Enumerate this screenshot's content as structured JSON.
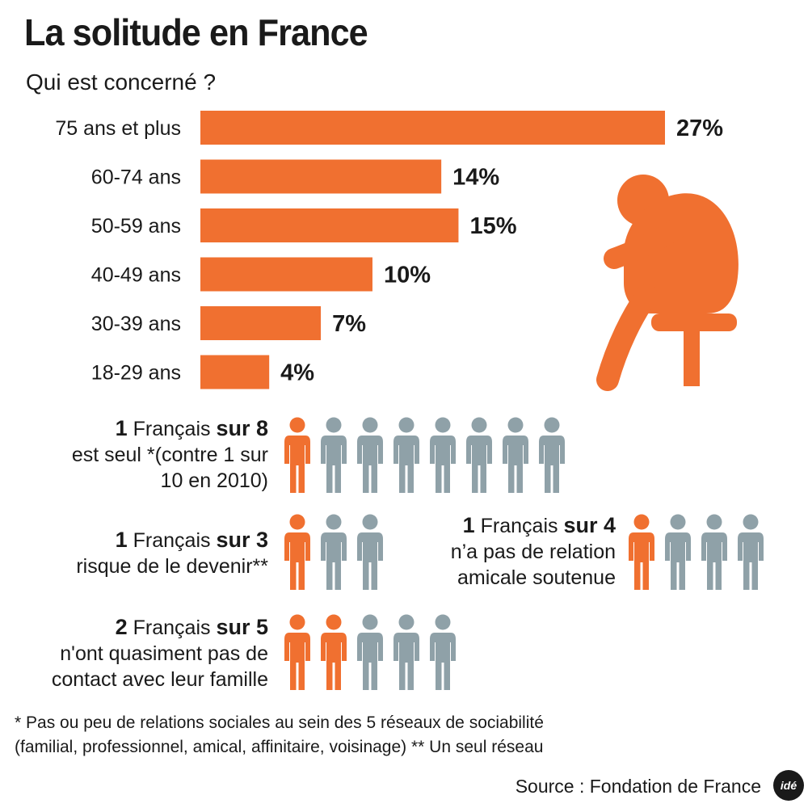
{
  "header": {
    "title": "La solitude en France",
    "subtitle": "Qui est concerné ?"
  },
  "chart_data": {
    "type": "bar",
    "orientation": "horizontal",
    "categories": [
      "75 ans et plus",
      "60-74 ans",
      "50-59 ans",
      "40-49 ans",
      "30-39 ans",
      "18-29 ans"
    ],
    "values": [
      27,
      14,
      15,
      10,
      7,
      4
    ],
    "value_labels": [
      "27%",
      "14%",
      "15%",
      "10%",
      "7%",
      "4%"
    ],
    "title": "La solitude en France",
    "subtitle": "Qui est concerné ?",
    "xlabel": "",
    "ylabel": "",
    "xlim": [
      0,
      30
    ],
    "grid": false,
    "bar_color": "#f07030"
  },
  "colors": {
    "accent": "#f07030",
    "muted": "#8fa1a8",
    "text": "#1a1a1a"
  },
  "stats": [
    {
      "id": "stat-1-sur-8",
      "num": "1",
      "mid": " Français ",
      "sur": "sur 8",
      "lines": [
        "est seul *(contre 1 sur",
        "10 en 2010)"
      ],
      "highlighted": 1,
      "total": 8
    },
    {
      "id": "stat-1-sur-3",
      "num": "1",
      "mid": " Français ",
      "sur": "sur 3",
      "lines": [
        "risque de le devenir**"
      ],
      "highlighted": 1,
      "total": 3
    },
    {
      "id": "stat-1-sur-4",
      "num": "1",
      "mid": " Français ",
      "sur": "sur 4",
      "lines": [
        "n’a pas de relation",
        "amicale soutenue"
      ],
      "highlighted": 1,
      "total": 4
    },
    {
      "id": "stat-2-sur-5",
      "num": "2",
      "mid": " Français ",
      "sur": "sur 5",
      "lines": [
        "n'ont quasiment pas de",
        "contact avec leur famille"
      ],
      "highlighted": 2,
      "total": 5
    }
  ],
  "footnote": {
    "line1": "* Pas ou peu de relations sociales au sein des 5 réseaux de sociabilité",
    "line2": "(familial, professionnel, amical, affinitaire, voisinage)  ** Un seul réseau"
  },
  "source": "Source : Fondation de France",
  "logo_text": "idé",
  "icons": {
    "illustration": "sad-seated-person-icon",
    "person": "person-icon"
  }
}
